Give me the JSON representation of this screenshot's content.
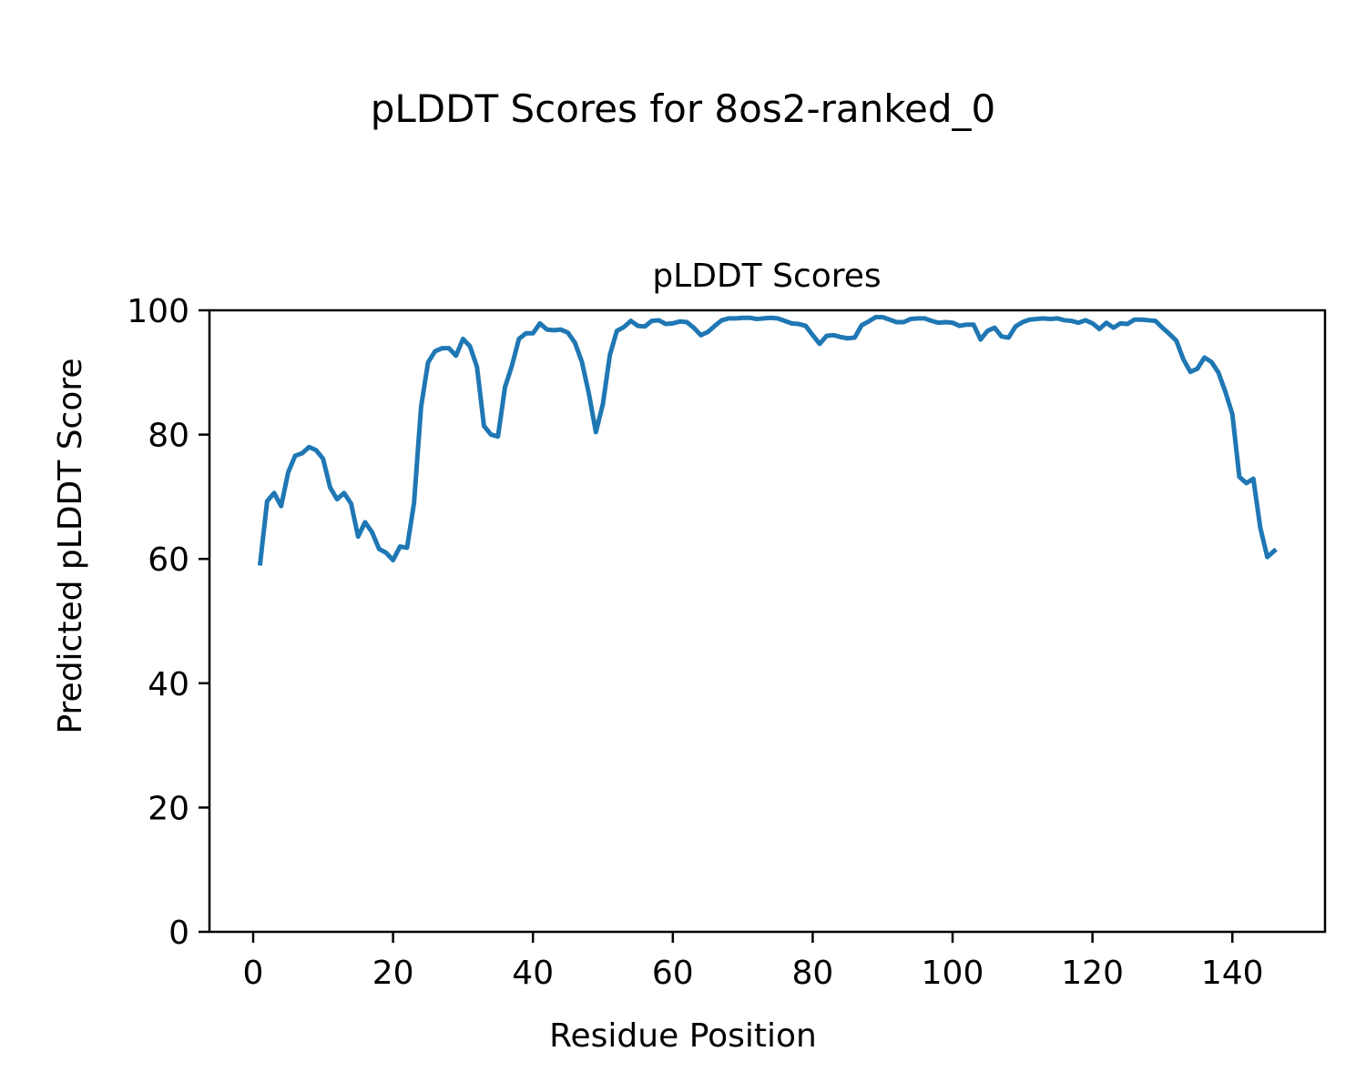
{
  "chart_data": {
    "type": "line",
    "suptitle": "pLDDT Scores for 8os2-ranked_0",
    "title": "pLDDT Scores",
    "xlabel": "Residue Position",
    "ylabel": "Predicted pLDDT Score",
    "xlim": [
      -6.25,
      153.25
    ],
    "ylim": [
      0,
      100
    ],
    "xticks": [
      0,
      20,
      40,
      60,
      80,
      100,
      120,
      140
    ],
    "yticks": [
      0,
      20,
      40,
      60,
      80,
      100
    ],
    "grid": false,
    "legend": "none",
    "line_color": "#1f77b4",
    "series": [
      {
        "x": [
          1,
          2,
          3,
          4,
          5,
          6,
          7,
          8,
          9,
          10,
          11,
          12,
          13,
          14,
          15,
          16,
          17,
          18,
          19,
          20,
          21,
          22,
          23,
          24,
          25,
          26,
          27,
          28,
          29,
          30,
          31,
          32,
          33,
          34,
          35,
          36,
          37,
          38,
          39,
          40,
          41,
          42,
          43,
          44,
          45,
          46,
          47,
          48,
          49,
          50,
          51,
          52,
          53,
          54,
          55,
          56,
          57,
          58,
          59,
          60,
          61,
          62,
          63,
          64,
          65,
          66,
          67,
          68,
          69,
          70,
          71,
          72,
          73,
          74,
          75,
          76,
          77,
          78,
          79,
          80,
          81,
          82,
          83,
          84,
          85,
          86,
          87,
          88,
          89,
          90,
          91,
          92,
          93,
          94,
          95,
          96,
          97,
          98,
          99,
          100,
          101,
          102,
          103,
          104,
          105,
          106,
          107,
          108,
          109,
          110,
          111,
          112,
          113,
          114,
          115,
          116,
          117,
          118,
          119,
          120,
          121,
          122,
          123,
          124,
          125,
          126,
          127,
          128,
          129,
          130,
          131,
          132,
          133,
          134,
          135,
          136,
          137,
          138,
          139,
          140,
          141,
          142,
          143,
          144,
          145,
          146
        ],
        "values": [
          59.3,
          69.3,
          70.6,
          68.5,
          73.9,
          76.6,
          77.0,
          78.0,
          77.5,
          76.1,
          71.5,
          69.6,
          70.6,
          68.9,
          63.6,
          65.9,
          64.3,
          61.6,
          61.0,
          59.8,
          62.0,
          61.8,
          69.0,
          84.4,
          91.6,
          93.4,
          93.9,
          93.9,
          92.7,
          95.4,
          94.2,
          90.9,
          81.4,
          80.0,
          79.7,
          87.6,
          91.1,
          95.4,
          96.3,
          96.3,
          97.9,
          96.9,
          96.8,
          96.9,
          96.4,
          94.8,
          91.7,
          86.6,
          80.4,
          84.9,
          92.8,
          96.7,
          97.3,
          98.3,
          97.5,
          97.4,
          98.3,
          98.4,
          97.8,
          97.9,
          98.2,
          98.1,
          97.2,
          96.0,
          96.5,
          97.5,
          98.4,
          98.7,
          98.7,
          98.8,
          98.8,
          98.6,
          98.7,
          98.8,
          98.7,
          98.3,
          97.9,
          97.8,
          97.5,
          96.0,
          94.6,
          95.9,
          96.0,
          95.7,
          95.5,
          95.6,
          97.6,
          98.2,
          98.9,
          98.9,
          98.5,
          98.1,
          98.1,
          98.6,
          98.7,
          98.7,
          98.3,
          98.0,
          98.1,
          98.0,
          97.5,
          97.7,
          97.7,
          95.3,
          96.7,
          97.2,
          95.8,
          95.6,
          97.4,
          98.1,
          98.5,
          98.6,
          98.7,
          98.6,
          98.7,
          98.4,
          98.3,
          98.0,
          98.4,
          97.9,
          97.0,
          98.0,
          97.2,
          97.9,
          97.8,
          98.5,
          98.5,
          98.4,
          98.3,
          97.2,
          96.2,
          95.1,
          92.1,
          90.1,
          90.6,
          92.4,
          91.7,
          90.0,
          86.9,
          83.3,
          73.2,
          72.2,
          72.9,
          65.0,
          60.3,
          61.3
        ]
      }
    ]
  }
}
